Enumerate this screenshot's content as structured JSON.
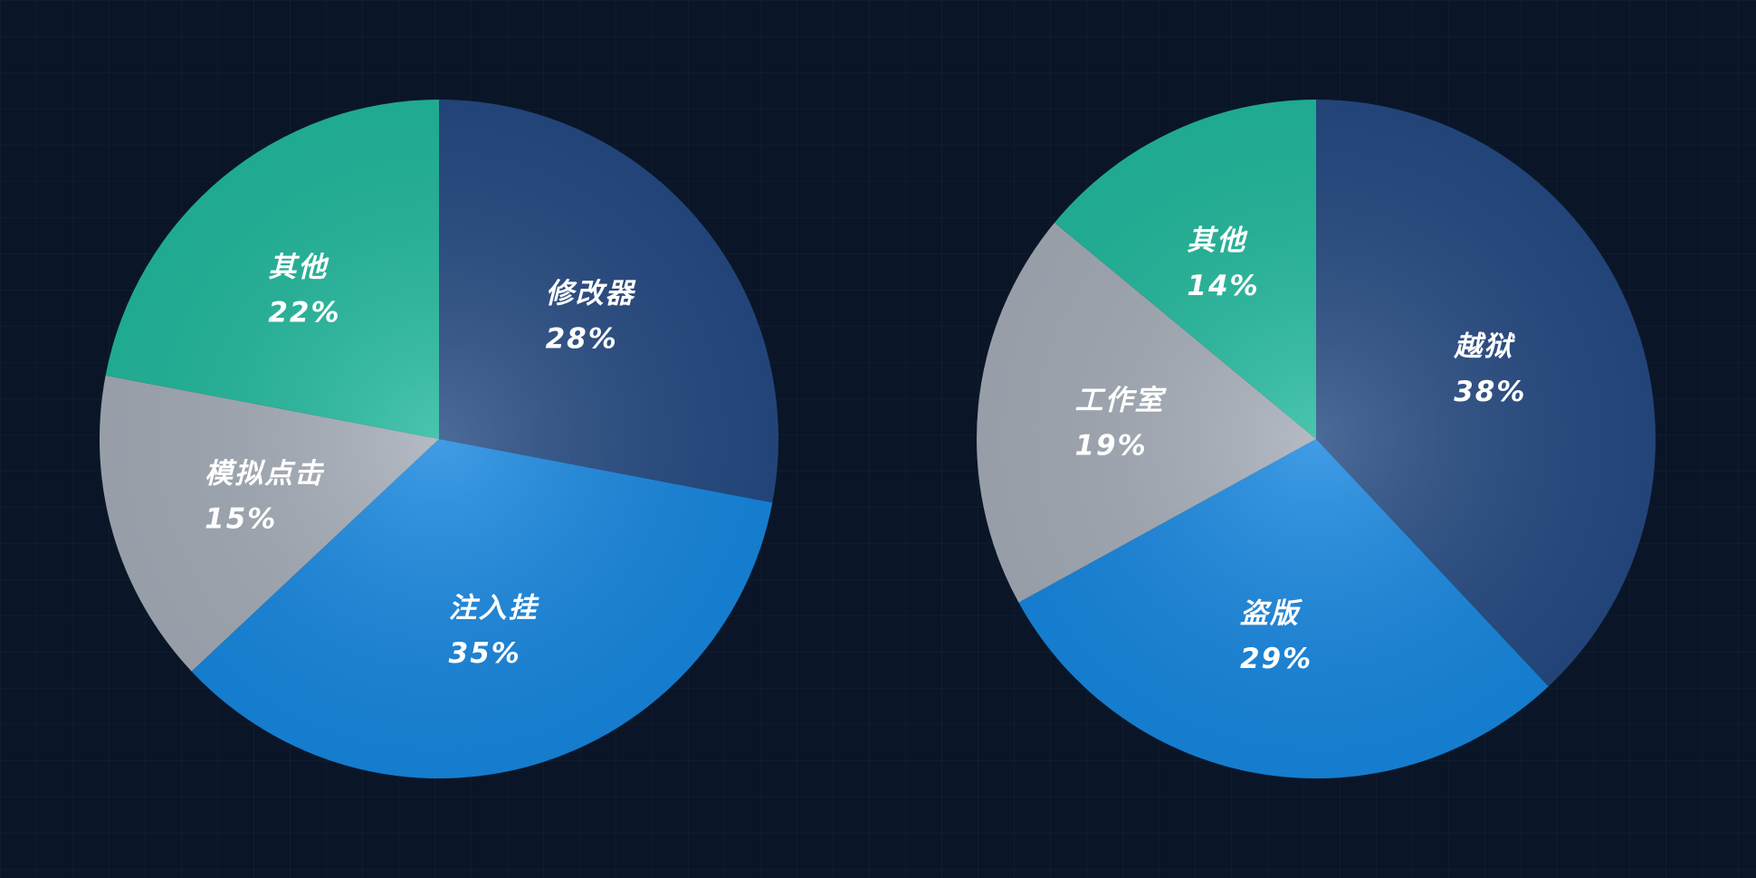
{
  "chart_data": [
    {
      "type": "pie",
      "categories": [
        "修改器",
        "注入挂",
        "模拟点击",
        "其他"
      ],
      "values": [
        28,
        35,
        15,
        22
      ],
      "value_labels": [
        "28%",
        "35%",
        "15%",
        "22%"
      ],
      "colors": [
        "#254a82",
        "#1787e0",
        "#a4acb7",
        "#22b99d"
      ]
    },
    {
      "type": "pie",
      "categories": [
        "越狱",
        "盗版",
        "工作室",
        "其他"
      ],
      "values": [
        38,
        29,
        19,
        14
      ],
      "value_labels": [
        "38%",
        "29%",
        "19%",
        "14%"
      ],
      "colors": [
        "#254a82",
        "#1787e0",
        "#a4acb7",
        "#22b99d"
      ]
    }
  ]
}
